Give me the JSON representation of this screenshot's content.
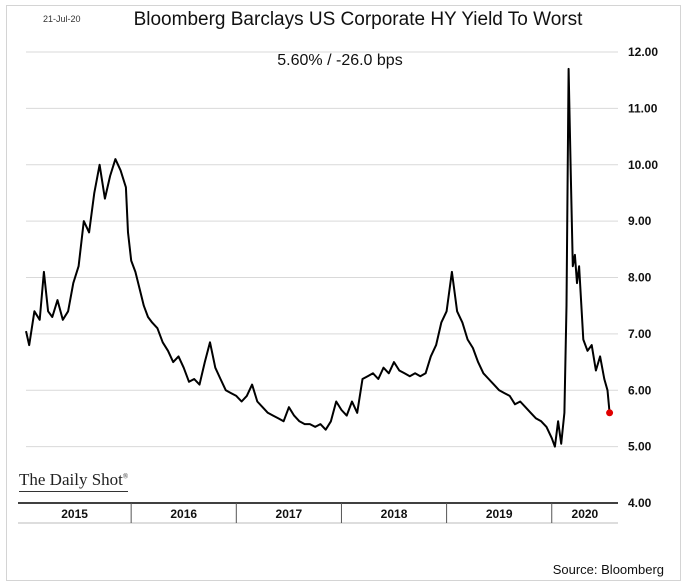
{
  "header": {
    "date": "21-Jul-20",
    "title": "Bloomberg Barclays US Corporate HY Yield To Worst",
    "subtitle": "5.60%  /  -26.0 bps"
  },
  "logo_text": "The Daily Shot",
  "logo_mark": "®",
  "source": "Source: Bloomberg",
  "colors": {
    "line": "#000000",
    "last_point": "#e00000",
    "grid": "#d9d9d9"
  },
  "chart_data": {
    "type": "line",
    "title": "Bloomberg Barclays US Corporate HY Yield To Worst",
    "xlabel": "",
    "ylabel": "",
    "ylim": [
      4.0,
      12.0
    ],
    "xlim": [
      2015.0,
      2020.63
    ],
    "yticks": [
      "4.00",
      "5.00",
      "6.00",
      "7.00",
      "8.00",
      "9.00",
      "10.00",
      "11.00",
      "12.00"
    ],
    "xcategories": [
      "2015",
      "2016",
      "2017",
      "2018",
      "2019",
      "2020"
    ],
    "grid": "horizontal",
    "legend": "none",
    "series": [
      {
        "x": [
          2015.0,
          2015.03,
          2015.08,
          2015.13,
          2015.17,
          2015.21,
          2015.25,
          2015.3,
          2015.35,
          2015.4,
          2015.45,
          2015.5,
          2015.55,
          2015.6,
          2015.65,
          2015.7,
          2015.75,
          2015.8,
          2015.85,
          2015.9,
          2015.95,
          2015.97,
          2016.0,
          2016.04,
          2016.08,
          2016.12,
          2016.16,
          2016.2,
          2016.25,
          2016.3,
          2016.35,
          2016.4,
          2016.45,
          2016.5,
          2016.55,
          2016.6,
          2016.65,
          2016.7,
          2016.75,
          2016.8,
          2016.85,
          2016.9,
          2016.95,
          2017.0,
          2017.05,
          2017.1,
          2017.15,
          2017.2,
          2017.25,
          2017.3,
          2017.35,
          2017.4,
          2017.45,
          2017.5,
          2017.55,
          2017.6,
          2017.65,
          2017.7,
          2017.75,
          2017.8,
          2017.85,
          2017.9,
          2017.95,
          2018.0,
          2018.05,
          2018.1,
          2018.15,
          2018.2,
          2018.25,
          2018.3,
          2018.35,
          2018.4,
          2018.45,
          2018.5,
          2018.55,
          2018.6,
          2018.65,
          2018.7,
          2018.75,
          2018.8,
          2018.85,
          2018.9,
          2018.95,
          2019.0,
          2019.05,
          2019.1,
          2019.15,
          2019.2,
          2019.25,
          2019.3,
          2019.35,
          2019.4,
          2019.45,
          2019.5,
          2019.55,
          2019.6,
          2019.65,
          2019.7,
          2019.75,
          2019.8,
          2019.85,
          2019.9,
          2019.95,
          2020.0,
          2020.03,
          2020.06,
          2020.09,
          2020.12,
          2020.14,
          2020.16,
          2020.18,
          2020.2,
          2020.22,
          2020.24,
          2020.26,
          2020.3,
          2020.34,
          2020.38,
          2020.42,
          2020.46,
          2020.5,
          2020.53,
          2020.55
        ],
        "y": [
          7.05,
          6.8,
          7.4,
          7.25,
          8.1,
          7.4,
          7.3,
          7.6,
          7.25,
          7.4,
          7.9,
          8.2,
          9.0,
          8.8,
          9.5,
          10.0,
          9.4,
          9.8,
          10.1,
          9.9,
          9.6,
          8.8,
          8.3,
          8.1,
          7.8,
          7.5,
          7.3,
          7.2,
          7.1,
          6.85,
          6.7,
          6.5,
          6.6,
          6.4,
          6.15,
          6.2,
          6.1,
          6.5,
          6.85,
          6.4,
          6.2,
          6.0,
          5.95,
          5.9,
          5.8,
          5.9,
          6.1,
          5.8,
          5.7,
          5.6,
          5.55,
          5.5,
          5.45,
          5.7,
          5.55,
          5.45,
          5.4,
          5.4,
          5.35,
          5.4,
          5.3,
          5.45,
          5.8,
          5.65,
          5.55,
          5.8,
          5.6,
          6.2,
          6.25,
          6.3,
          6.2,
          6.4,
          6.3,
          6.5,
          6.35,
          6.3,
          6.25,
          6.3,
          6.25,
          6.3,
          6.6,
          6.8,
          7.2,
          7.4,
          8.1,
          7.4,
          7.2,
          6.9,
          6.75,
          6.5,
          6.3,
          6.2,
          6.1,
          6.0,
          5.95,
          5.9,
          5.75,
          5.8,
          5.7,
          5.6,
          5.5,
          5.45,
          5.35,
          5.15,
          5.0,
          5.45,
          5.05,
          5.6,
          7.5,
          11.7,
          9.9,
          8.2,
          8.4,
          7.9,
          8.2,
          6.9,
          6.7,
          6.8,
          6.35,
          6.6,
          6.2,
          6.0,
          5.6
        ]
      }
    ]
  }
}
